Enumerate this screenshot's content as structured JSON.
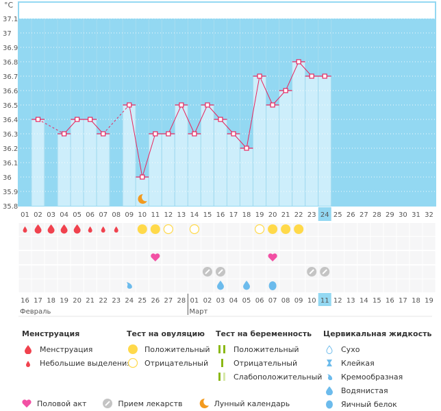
{
  "chart_data": {
    "type": "bar",
    "unit_label": "°C",
    "y_ticks": [
      "37.1",
      "37",
      "36.9",
      "36.8",
      "36.7",
      "36.6",
      "36.5",
      "36.4",
      "36.3",
      "36.2",
      "36.1",
      "36",
      "35.9",
      "35.8"
    ],
    "ylim": [
      35.8,
      37.1
    ],
    "cycle_days": [
      "01",
      "02",
      "03",
      "04",
      "05",
      "06",
      "07",
      "08",
      "09",
      "10",
      "11",
      "12",
      "13",
      "14",
      "15",
      "16",
      "17",
      "18",
      "19",
      "20",
      "21",
      "22",
      "23",
      "24",
      "25",
      "26",
      "27",
      "28",
      "29",
      "30",
      "31",
      "32"
    ],
    "temperatures": [
      null,
      36.4,
      null,
      36.3,
      36.4,
      36.4,
      36.3,
      null,
      36.5,
      36.0,
      36.3,
      36.3,
      36.5,
      36.3,
      36.5,
      36.4,
      36.3,
      36.2,
      36.7,
      36.5,
      36.6,
      36.8,
      36.7,
      36.7,
      null,
      null,
      null,
      null,
      null,
      null,
      null,
      null
    ],
    "current_day_index": 23,
    "dates": [
      "16",
      "17",
      "18",
      "19",
      "20",
      "21",
      "22",
      "23",
      "24",
      "25",
      "26",
      "27",
      "28",
      "01",
      "02",
      "03",
      "04",
      "05",
      "06",
      "07",
      "08",
      "09",
      "10",
      "11",
      "12",
      "13",
      "14",
      "15",
      "16",
      "17",
      "18",
      "19"
    ],
    "weekend_dates": [
      5,
      6,
      12,
      13,
      19,
      20,
      26,
      27
    ],
    "today_date_index": 23,
    "months": [
      {
        "label": "Февраль",
        "start": 0
      },
      {
        "label": "Март",
        "start": 13
      }
    ],
    "menstruation": [
      "light",
      "heavy",
      "heavy",
      "heavy",
      "heavy",
      "light",
      "light",
      "light",
      null,
      null,
      null,
      null,
      null,
      null,
      null,
      null,
      null,
      null,
      null,
      null,
      null,
      null,
      null,
      null,
      null,
      null,
      null,
      null,
      null,
      null,
      null,
      null
    ],
    "ovulation_test": [
      null,
      null,
      null,
      null,
      null,
      null,
      null,
      null,
      null,
      "positive",
      "positive",
      "negative",
      null,
      "negative",
      null,
      null,
      null,
      null,
      "negative",
      "positive",
      "positive",
      "positive",
      null,
      null,
      null,
      null,
      null,
      null,
      null,
      null,
      null,
      null
    ],
    "intercourse": [
      10,
      19
    ],
    "medication": [
      14,
      15,
      22,
      23
    ],
    "cervical_fluid": [
      {
        "day": 8,
        "type": "creamy"
      },
      {
        "day": 15,
        "type": "watery"
      },
      {
        "day": 17,
        "type": "watery"
      },
      {
        "day": 19,
        "type": "eggwhite"
      }
    ],
    "moon_day": 9,
    "colors": {
      "plot_bg": "#93d8f2",
      "bar": "#cdeefb",
      "line": "#e8245d",
      "blood": "#f0424e",
      "ovulation": "#ffd94a",
      "heart": "#f250a4",
      "pill": "#c4c4c4",
      "fluid": "#6cbbec",
      "moon": "#f39a1e",
      "weekend": "#e0245c",
      "pregnancy": "#8bb815"
    }
  },
  "legend": {
    "menstruation": {
      "title": "Менструация",
      "items": [
        "Менструация",
        "Небольшие выделения"
      ]
    },
    "ovulation": {
      "title": "Тест на овуляцию",
      "items": [
        "Положительный",
        "Отрицательный"
      ]
    },
    "pregnancy": {
      "title": "Тест на беременность",
      "items": [
        "Положительный",
        "Отрицательный",
        "Слабоположительный"
      ]
    },
    "cervical": {
      "title": "Цервикальная жидкость",
      "items": [
        "Сухо",
        "Клейкая",
        "Кремообразная",
        "Водянистая",
        "Яичный белок"
      ]
    },
    "other": {
      "intercourse": "Половой акт",
      "medication": "Прием лекарств",
      "lunar": "Лунный календарь"
    }
  }
}
